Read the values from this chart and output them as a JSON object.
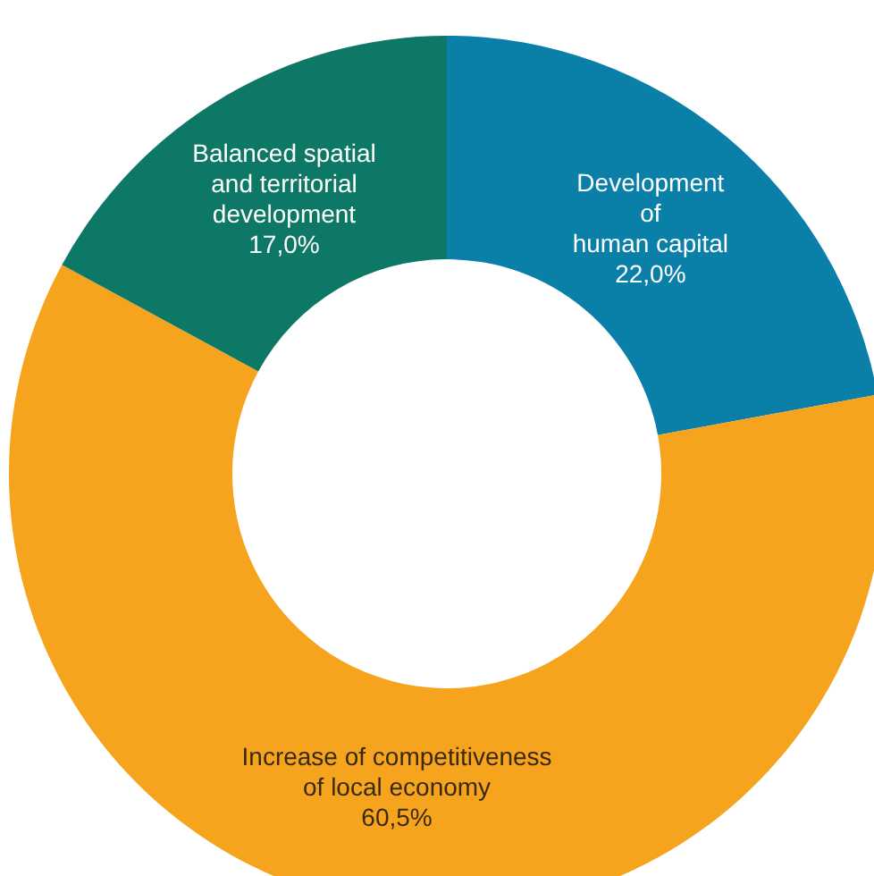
{
  "chart_data": {
    "type": "donut",
    "categories": [
      "Development\nof\nhuman capital",
      "Increase of competitiveness\nof local economy",
      "Balanced spatial\nand territorial\ndevelopment"
    ],
    "values": [
      22.0,
      60.5,
      17.0
    ],
    "value_labels": [
      "22,0%",
      "60,5%",
      "17,0%"
    ],
    "colors": [
      "#0a7fa8",
      "#f6a31e",
      "#0e7866"
    ]
  }
}
